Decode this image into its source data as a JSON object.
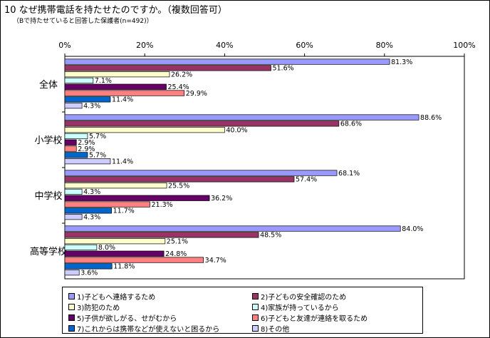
{
  "header": {
    "title": "10 なぜ携帯電話を持たせたのですか。（複数回答可）",
    "subtitle": "（Bで持たせていると回答した保護者(n=492)）"
  },
  "chart_data": {
    "type": "bar",
    "orientation": "horizontal",
    "categories": [
      "全体",
      "小学校",
      "中学校",
      "高等学校"
    ],
    "xlim": [
      0,
      100
    ],
    "ticks": [
      "0%",
      "20%",
      "40%",
      "60%",
      "80%",
      "100%"
    ],
    "grid": false,
    "legend_position": "bottom",
    "series": [
      {
        "name": "1)子どもへ連絡するため",
        "color": "#9999FF",
        "values": [
          81.3,
          88.6,
          68.1,
          84.0
        ],
        "labels": [
          "81.3%",
          "88.6%",
          "68.1%",
          "84.0%"
        ]
      },
      {
        "name": "2)子どもの安全確認のため",
        "color": "#993366",
        "values": [
          51.6,
          68.6,
          57.4,
          48.5
        ],
        "labels": [
          "51.6%",
          "68.6%",
          "57.4%",
          "48.5%"
        ]
      },
      {
        "name": "3)防犯のため",
        "color": "#FFFFCC",
        "values": [
          26.2,
          40.0,
          25.5,
          25.1
        ],
        "labels": [
          "26.2%",
          "40.0%",
          "25.5%",
          "25.1%"
        ]
      },
      {
        "name": "4)家族が持っているから",
        "color": "#CCFFFF",
        "values": [
          7.1,
          5.7,
          4.3,
          8.0
        ],
        "labels": [
          "7.1%",
          "5.7%",
          "4.3%",
          "8.0%"
        ]
      },
      {
        "name": "5)子供が欲しがる、せがむから",
        "color": "#660066",
        "values": [
          25.4,
          2.9,
          36.2,
          24.8
        ],
        "labels": [
          "25.4%",
          "2.9%",
          "36.2%",
          "24.8%"
        ]
      },
      {
        "name": "6)子どもと友達が連絡を取るため",
        "color": "#FF8080",
        "values": [
          29.9,
          2.9,
          21.3,
          34.7
        ],
        "labels": [
          "29.9%",
          "2.9%",
          "21.3%",
          "34.7%"
        ]
      },
      {
        "name": "7)これからは携帯などが使えないと困るから",
        "color": "#0066CC",
        "values": [
          11.4,
          5.7,
          11.7,
          11.8
        ],
        "labels": [
          "11.4%",
          "5.7%",
          "11.7%",
          "11.8%"
        ]
      },
      {
        "name": "8)その他",
        "color": "#CCCCFF",
        "values": [
          4.3,
          11.4,
          4.3,
          3.6
        ],
        "labels": [
          "4.3%",
          "11.4%",
          "4.3%",
          "3.6%"
        ]
      }
    ]
  }
}
